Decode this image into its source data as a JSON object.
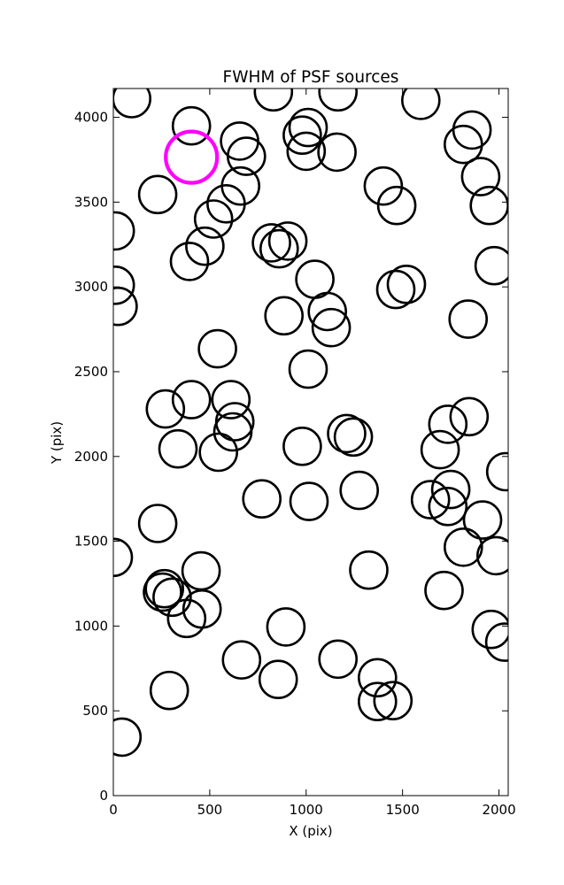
{
  "chart_data": {
    "type": "scatter",
    "title": "FWHM of PSF sources",
    "xlabel": "X (pix)",
    "ylabel": "Y (pix)",
    "xlim": [
      0,
      2048
    ],
    "ylim": [
      0,
      4170
    ],
    "xticks": [
      0,
      500,
      1000,
      1500,
      2000
    ],
    "yticks": [
      0,
      500,
      1000,
      1500,
      2000,
      2500,
      3000,
      3500,
      4000
    ],
    "grid": false,
    "marker": "circle",
    "series": [
      {
        "color": "#000000",
        "points": [
          [
            95,
            4110
          ],
          [
            405,
            3950
          ],
          [
            830,
            4150
          ],
          [
            1010,
            3940
          ],
          [
            1165,
            4150
          ],
          [
            1595,
            4100
          ],
          [
            1860,
            3925
          ],
          [
            980,
            3895
          ],
          [
            1815,
            3840
          ],
          [
            655,
            3860
          ],
          [
            690,
            3770
          ],
          [
            1000,
            3800
          ],
          [
            1160,
            3795
          ],
          [
            1905,
            3650
          ],
          [
            230,
            3545
          ],
          [
            660,
            3595
          ],
          [
            1400,
            3595
          ],
          [
            585,
            3490
          ],
          [
            1470,
            3480
          ],
          [
            1950,
            3480
          ],
          [
            520,
            3400
          ],
          [
            10,
            3330
          ],
          [
            820,
            3260
          ],
          [
            905,
            3270
          ],
          [
            475,
            3240
          ],
          [
            860,
            3225
          ],
          [
            395,
            3150
          ],
          [
            1975,
            3125
          ],
          [
            10,
            3010
          ],
          [
            1045,
            3045
          ],
          [
            1520,
            3015
          ],
          [
            1465,
            2985
          ],
          [
            25,
            2885
          ],
          [
            1110,
            2855
          ],
          [
            885,
            2830
          ],
          [
            1840,
            2810
          ],
          [
            1130,
            2760
          ],
          [
            540,
            2635
          ],
          [
            1010,
            2515
          ],
          [
            610,
            2335
          ],
          [
            405,
            2335
          ],
          [
            270,
            2280
          ],
          [
            630,
            2205
          ],
          [
            1845,
            2235
          ],
          [
            1735,
            2190
          ],
          [
            1210,
            2135
          ],
          [
            620,
            2145
          ],
          [
            1245,
            2115
          ],
          [
            1695,
            2040
          ],
          [
            335,
            2045
          ],
          [
            980,
            2060
          ],
          [
            545,
            2025
          ],
          [
            2035,
            1910
          ],
          [
            1750,
            1805
          ],
          [
            1275,
            1800
          ],
          [
            770,
            1750
          ],
          [
            1645,
            1745
          ],
          [
            1015,
            1735
          ],
          [
            1735,
            1705
          ],
          [
            230,
            1605
          ],
          [
            1915,
            1625
          ],
          [
            1815,
            1465
          ],
          [
            0,
            1405
          ],
          [
            1985,
            1415
          ],
          [
            455,
            1325
          ],
          [
            1325,
            1330
          ],
          [
            265,
            1220
          ],
          [
            255,
            1200
          ],
          [
            1715,
            1210
          ],
          [
            305,
            1170
          ],
          [
            460,
            1100
          ],
          [
            380,
            1045
          ],
          [
            895,
            995
          ],
          [
            1960,
            980
          ],
          [
            2030,
            905
          ],
          [
            665,
            800
          ],
          [
            1165,
            805
          ],
          [
            1370,
            695
          ],
          [
            855,
            685
          ],
          [
            290,
            620
          ],
          [
            1370,
            555
          ],
          [
            1450,
            560
          ],
          [
            45,
            345
          ]
        ]
      },
      {
        "color": "#ff00ff",
        "points": [
          [
            405,
            3765
          ]
        ]
      }
    ]
  }
}
